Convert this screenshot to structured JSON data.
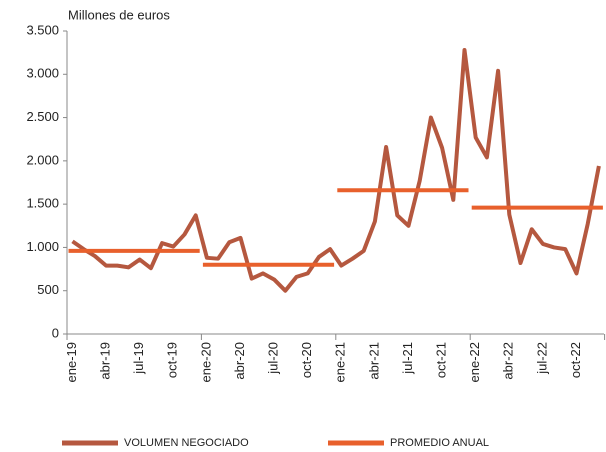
{
  "chart_data": {
    "type": "line",
    "y_label": "Millones de euros",
    "categories": [
      "ene-19",
      null,
      null,
      "abr-19",
      null,
      null,
      "jul-19",
      null,
      null,
      "oct-19",
      null,
      null,
      "ene-20",
      null,
      null,
      "abr-20",
      null,
      null,
      "jul-20",
      null,
      null,
      "oct-20",
      null,
      null,
      "ene-21",
      null,
      null,
      "abr-21",
      null,
      null,
      "jul-21",
      null,
      null,
      "oct-21",
      null,
      null,
      "ene-22",
      null,
      null,
      "abr-22",
      null,
      null,
      "jul-22",
      null,
      null,
      "oct-22",
      null,
      null
    ],
    "series": [
      {
        "name": "VOLUMEN NEGOCIADO",
        "color": "#b5583f",
        "style": "line",
        "values": [
          1070,
          980,
          900,
          790,
          790,
          770,
          860,
          760,
          1050,
          1010,
          1150,
          1370,
          880,
          870,
          1060,
          1110,
          640,
          700,
          630,
          500,
          660,
          700,
          890,
          980,
          790,
          870,
          960,
          1300,
          2160,
          1370,
          1250,
          1770,
          2500,
          2150,
          1550,
          3280,
          2270,
          2040,
          3040,
          1380,
          820,
          1210,
          1040,
          1000,
          980,
          700,
          1270,
          1940
        ]
      },
      {
        "name": "PROMEDIO ANUAL",
        "color": "#e8602c",
        "style": "yearly-step",
        "values": [
          960,
          960,
          960,
          960,
          960,
          960,
          960,
          960,
          960,
          960,
          960,
          960,
          800,
          800,
          800,
          800,
          800,
          800,
          800,
          800,
          800,
          800,
          800,
          800,
          1660,
          1660,
          1660,
          1660,
          1660,
          1660,
          1660,
          1660,
          1660,
          1660,
          1660,
          1660,
          1460,
          1460,
          1460,
          1460,
          1460,
          1460,
          1460,
          1460,
          1460,
          1460,
          1460,
          1460
        ]
      }
    ],
    "ylim": [
      0,
      3500
    ],
    "yticks": [
      0,
      500,
      {
        "value": 1000,
        "label": "1.000"
      },
      {
        "value": 1500,
        "label": "1.500"
      },
      {
        "value": 2000,
        "label": "2.000"
      },
      {
        "value": 2500,
        "label": "2.500"
      },
      {
        "value": 3000,
        "label": "3.000"
      },
      {
        "value": 3500,
        "label": "3.500"
      }
    ],
    "legend": "bottom"
  }
}
